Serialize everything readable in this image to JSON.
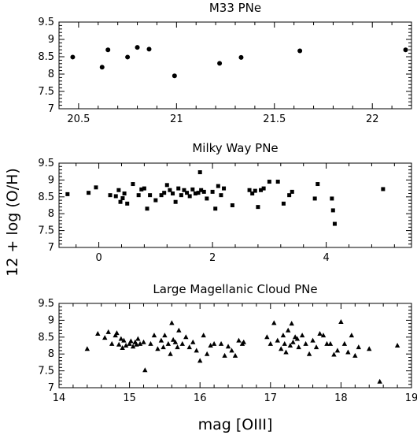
{
  "figure": {
    "ylabel": "12 + log (O/H)",
    "xlabel": "mag [OIII]"
  },
  "chart_data": [
    {
      "type": "scatter",
      "title": "M33 PNe",
      "marker": "circle",
      "xlim": [
        20.4,
        22.2
      ],
      "ylim": [
        7,
        9.5
      ],
      "xticks": [
        20.5,
        21,
        21.5,
        22
      ],
      "xtick_labels": [
        "20.5",
        "21",
        "21.5",
        "22"
      ],
      "yticks": [
        7,
        7.5,
        8,
        8.5,
        9,
        9.5
      ],
      "ytick_labels": [
        "7",
        "7.5",
        "8",
        "8.5",
        "9",
        "9.5"
      ],
      "x": [
        20.47,
        20.62,
        20.65,
        20.75,
        20.8,
        20.86,
        20.99,
        21.22,
        21.33,
        21.63,
        22.17
      ],
      "y": [
        8.49,
        8.2,
        8.7,
        8.49,
        8.77,
        8.72,
        7.95,
        8.31,
        8.48,
        8.67,
        8.7
      ]
    },
    {
      "type": "scatter",
      "title": "Milky Way PNe",
      "marker": "square",
      "xlim": [
        -0.7,
        5.5
      ],
      "ylim": [
        7,
        9.5
      ],
      "xticks": [
        0,
        2,
        4
      ],
      "xtick_labels": [
        "0",
        "2",
        "4"
      ],
      "yticks": [
        7,
        7.5,
        8,
        8.5,
        9,
        9.5
      ],
      "ytick_labels": [
        "7",
        "7.5",
        "8",
        "8.5",
        "9",
        "9.5"
      ],
      "x": [
        -0.55,
        -0.18,
        -0.05,
        0.2,
        0.3,
        0.35,
        0.38,
        0.42,
        0.45,
        0.5,
        0.6,
        0.7,
        0.75,
        0.8,
        0.85,
        0.9,
        1.0,
        1.1,
        1.15,
        1.2,
        1.25,
        1.3,
        1.35,
        1.4,
        1.45,
        1.5,
        1.55,
        1.6,
        1.65,
        1.7,
        1.75,
        1.78,
        1.8,
        1.85,
        1.9,
        2.0,
        2.05,
        2.1,
        2.15,
        2.2,
        2.35,
        2.65,
        2.7,
        2.75,
        2.8,
        2.85,
        2.9,
        3.0,
        3.15,
        3.25,
        3.35,
        3.4,
        3.8,
        3.85,
        4.1,
        4.12,
        4.15,
        5.0
      ],
      "y": [
        8.58,
        8.62,
        8.78,
        8.55,
        8.52,
        8.7,
        8.35,
        8.46,
        8.6,
        8.3,
        8.88,
        8.55,
        8.72,
        8.75,
        8.15,
        8.55,
        8.4,
        8.55,
        8.62,
        8.85,
        8.7,
        8.6,
        8.35,
        8.75,
        8.55,
        8.7,
        8.62,
        8.52,
        8.72,
        8.6,
        8.62,
        9.23,
        8.7,
        8.65,
        8.45,
        8.65,
        8.15,
        8.82,
        8.55,
        8.75,
        8.25,
        8.7,
        8.6,
        8.68,
        8.2,
        8.7,
        8.75,
        8.95,
        8.95,
        8.3,
        8.55,
        8.65,
        8.45,
        8.88,
        8.45,
        8.1,
        7.7,
        8.73
      ]
    },
    {
      "type": "scatter",
      "title": "Large Magellanic Cloud PNe",
      "marker": "triangle",
      "xlim": [
        14,
        19
      ],
      "ylim": [
        7,
        9.5
      ],
      "xticks": [
        14,
        15,
        16,
        17,
        18,
        19
      ],
      "xtick_labels": [
        "14",
        "15",
        "16",
        "17",
        "18",
        "19"
      ],
      "yticks": [
        7,
        7.5,
        8,
        8.5,
        9,
        9.5
      ],
      "ytick_labels": [
        "7",
        "7.5",
        "8",
        "8.5",
        "9",
        "9.5"
      ],
      "x": [
        14.4,
        14.55,
        14.65,
        14.7,
        14.75,
        14.8,
        14.82,
        14.85,
        14.88,
        14.9,
        14.92,
        14.95,
        15.0,
        15.02,
        15.05,
        15.08,
        15.1,
        15.12,
        15.15,
        15.2,
        15.22,
        15.3,
        15.35,
        15.4,
        15.45,
        15.48,
        15.5,
        15.55,
        15.58,
        15.6,
        15.62,
        15.65,
        15.68,
        15.7,
        15.75,
        15.8,
        15.85,
        15.9,
        15.95,
        16.0,
        16.05,
        16.1,
        16.15,
        16.2,
        16.3,
        16.35,
        16.4,
        16.45,
        16.5,
        16.55,
        16.6,
        16.62,
        16.95,
        17.0,
        17.05,
        17.1,
        17.15,
        17.18,
        17.2,
        17.22,
        17.25,
        17.28,
        17.3,
        17.32,
        17.35,
        17.38,
        17.4,
        17.45,
        17.5,
        17.55,
        17.6,
        17.65,
        17.7,
        17.75,
        17.8,
        17.85,
        17.9,
        17.95,
        18.0,
        18.05,
        18.1,
        18.15,
        18.2,
        18.25,
        18.4,
        18.55,
        18.8
      ],
      "y": [
        8.15,
        8.6,
        8.48,
        8.65,
        8.3,
        8.55,
        8.62,
        8.28,
        8.45,
        8.18,
        8.4,
        8.25,
        8.3,
        8.38,
        8.22,
        8.35,
        8.28,
        8.45,
        8.3,
        8.35,
        7.52,
        8.3,
        8.55,
        8.15,
        8.4,
        8.2,
        8.55,
        8.3,
        8.0,
        8.92,
        8.42,
        8.35,
        8.2,
        8.7,
        8.3,
        8.5,
        8.2,
        8.35,
        8.1,
        7.8,
        8.55,
        8.0,
        8.25,
        8.3,
        8.3,
        7.95,
        8.22,
        8.1,
        7.95,
        8.4,
        8.3,
        8.35,
        8.5,
        8.3,
        8.92,
        8.4,
        8.15,
        8.55,
        8.3,
        8.05,
        8.7,
        8.25,
        8.9,
        8.35,
        8.5,
        8.45,
        8.2,
        8.55,
        8.3,
        8.0,
        8.4,
        8.2,
        8.6,
        8.55,
        8.3,
        8.3,
        7.98,
        8.1,
        8.95,
        8.3,
        8.05,
        8.55,
        7.95,
        8.2,
        8.15,
        7.18,
        8.25
      ]
    }
  ]
}
